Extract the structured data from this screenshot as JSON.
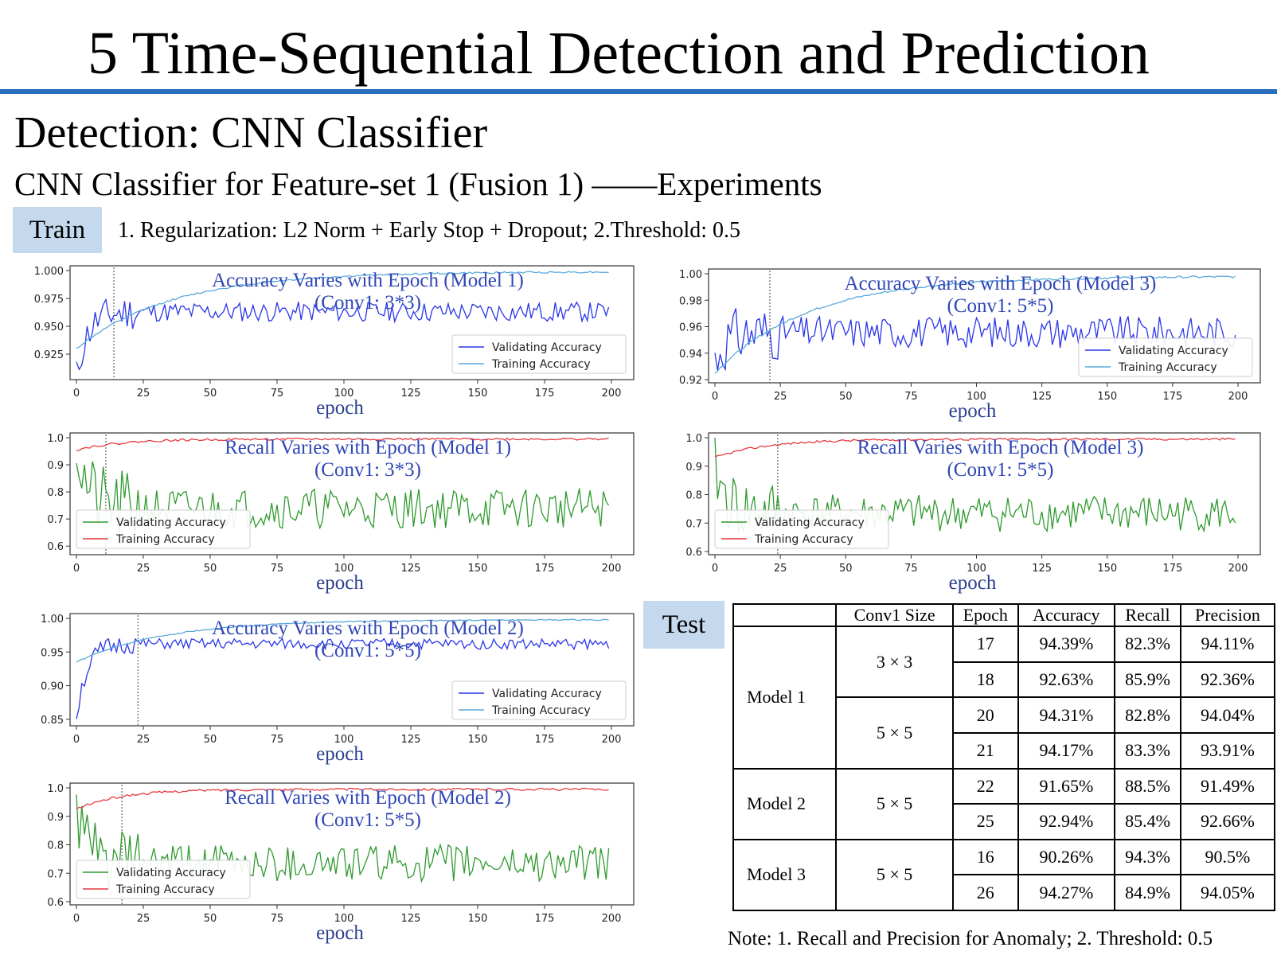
{
  "slide": {
    "title": "5  Time-Sequential Detection and Prediction",
    "section_title": "Detection: CNN Classifier",
    "subtitle": "CNN Classifier for Feature-set 1 (Fusion 1) ——Experiments",
    "train_tag": "Train",
    "train_description": "1. Regularization: L2 Norm + Early Stop + Dropout; 2.Threshold: 0.5",
    "test_tag": "Test",
    "note": "Note: 1. Recall and Precision for Anomaly; 2. Threshold: 0.5",
    "colors": {
      "rule": "#2a6fbf",
      "tag_bg": "#c5d9ee",
      "annotation": "#2f47b5",
      "validating_acc": "#2a36e8",
      "training_acc": "#5aa9dc",
      "validating_recall": "#2e9a2e",
      "training_recall": "#e8383f"
    }
  },
  "chart_data": [
    {
      "id": "acc-model1",
      "type": "line",
      "title": "Accuracy Varies with Epoch (Model 1)",
      "subtitle": "(Conv1: 3*3)",
      "xlabel": "epoch",
      "ylabel": "",
      "xlim": [
        0,
        200
      ],
      "ylim": [
        0.905,
        1.0
      ],
      "xticks": [
        0,
        25,
        50,
        75,
        100,
        125,
        150,
        175,
        200
      ],
      "yticks": [
        "1.000",
        "0.975",
        "0.950",
        "0.925"
      ],
      "early_stop_epoch": 14,
      "legend": "lower-right",
      "series": [
        {
          "name": "Validating Accuracy",
          "color": "#2a36e8",
          "start": 0.905,
          "level": 0.963,
          "noise": 0.009,
          "seed": 11
        },
        {
          "name": "Training Accuracy",
          "color": "#5aa9dc",
          "start": 0.93,
          "level": 0.999,
          "rate": 0.028,
          "noise": 0.0008,
          "seed": 12
        }
      ]
    },
    {
      "id": "acc-model3",
      "type": "line",
      "title": "Accuracy Varies with Epoch (Model 3)",
      "subtitle": "(Conv1: 5*5)",
      "xlabel": "epoch",
      "ylabel": "",
      "xlim": [
        0,
        200
      ],
      "ylim": [
        0.92,
        1.0
      ],
      "xticks": [
        0,
        25,
        50,
        75,
        100,
        125,
        150,
        175,
        200
      ],
      "yticks": [
        "1.00",
        "0.98",
        "0.96",
        "0.94",
        "0.92"
      ],
      "early_stop_epoch": 21,
      "legend": "lower-right",
      "series": [
        {
          "name": "Validating Accuracy",
          "color": "#2a36e8",
          "start": 0.935,
          "level": 0.956,
          "noise": 0.012,
          "seed": 31
        },
        {
          "name": "Training Accuracy",
          "color": "#5aa9dc",
          "start": 0.925,
          "level": 0.998,
          "rate": 0.028,
          "noise": 0.0008,
          "seed": 32
        }
      ]
    },
    {
      "id": "recall-model1",
      "type": "line",
      "title": "Recall Varies with Epoch (Model 1)",
      "subtitle": "(Conv1: 3*3)",
      "xlabel": "epoch",
      "ylabel": "",
      "xlim": [
        0,
        200
      ],
      "ylim": [
        0.58,
        1.0
      ],
      "xticks": [
        0,
        25,
        50,
        75,
        100,
        125,
        150,
        175,
        200
      ],
      "yticks": [
        "1.0",
        "0.9",
        "0.8",
        "0.7",
        "0.6"
      ],
      "early_stop_epoch": 11,
      "legend": "lower-left",
      "series": [
        {
          "name": "Validating Accuracy",
          "color": "#2e9a2e",
          "start": 0.97,
          "level": 0.74,
          "noise": 0.075,
          "seed": 21
        },
        {
          "name": "Training Accuracy",
          "color": "#e8383f",
          "start": 0.955,
          "level": 0.995,
          "rate": 0.06,
          "noise": 0.004,
          "seed": 22
        }
      ]
    },
    {
      "id": "recall-model3",
      "type": "line",
      "title": "Recall Varies with Epoch (Model 3)",
      "subtitle": "(Conv1: 5*5)",
      "xlabel": "epoch",
      "ylabel": "",
      "xlim": [
        0,
        200
      ],
      "ylim": [
        0.6,
        1.0
      ],
      "xticks": [
        0,
        25,
        50,
        75,
        100,
        125,
        150,
        175,
        200
      ],
      "yticks": [
        "1.0",
        "0.9",
        "0.8",
        "0.7",
        "0.6"
      ],
      "early_stop_epoch": 24,
      "legend": "lower-left",
      "series": [
        {
          "name": "Validating Accuracy",
          "color": "#2e9a2e",
          "start": 0.9,
          "level": 0.735,
          "noise": 0.065,
          "seed": 41
        },
        {
          "name": "Training Accuracy",
          "color": "#e8383f",
          "start": 0.93,
          "level": 0.995,
          "rate": 0.05,
          "noise": 0.004,
          "seed": 42
        }
      ]
    },
    {
      "id": "acc-model2",
      "type": "line",
      "title": "Accuracy Varies with Epoch (Model 2)",
      "subtitle": "(Conv1: 5*5)",
      "xlabel": "epoch",
      "ylabel": "",
      "xlim": [
        0,
        200
      ],
      "ylim": [
        0.845,
        1.0
      ],
      "xticks": [
        0,
        25,
        50,
        75,
        100,
        125,
        150,
        175,
        200
      ],
      "yticks": [
        "1.00",
        "0.95",
        "0.90",
        "0.85"
      ],
      "early_stop_epoch": 23,
      "legend": "lower-right",
      "series": [
        {
          "name": "Validating Accuracy",
          "color": "#2a36e8",
          "start": 0.855,
          "level": 0.962,
          "noise": 0.008,
          "seed": 51
        },
        {
          "name": "Training Accuracy",
          "color": "#5aa9dc",
          "start": 0.935,
          "level": 0.998,
          "rate": 0.03,
          "noise": 0.0008,
          "seed": 52
        }
      ]
    },
    {
      "id": "recall-model2",
      "type": "line",
      "title": "Recall Varies with Epoch (Model 2)",
      "subtitle": "(Conv1: 5*5)",
      "xlabel": "epoch",
      "ylabel": "",
      "xlim": [
        0,
        200
      ],
      "ylim": [
        0.6,
        1.0
      ],
      "xticks": [
        0,
        25,
        50,
        75,
        100,
        125,
        150,
        175,
        200
      ],
      "yticks": [
        "1.0",
        "0.9",
        "0.8",
        "0.7",
        "0.6"
      ],
      "early_stop_epoch": 17,
      "legend": "lower-left",
      "series": [
        {
          "name": "Validating Accuracy",
          "color": "#2e9a2e",
          "start": 0.93,
          "level": 0.735,
          "noise": 0.065,
          "seed": 61
        },
        {
          "name": "Training Accuracy",
          "color": "#e8383f",
          "start": 0.925,
          "level": 0.995,
          "rate": 0.06,
          "noise": 0.004,
          "seed": 62
        }
      ]
    }
  ],
  "table": {
    "headers": [
      "",
      "Conv1 Size",
      "Epoch",
      "Accuracy",
      "Recall",
      "Precision"
    ],
    "rows": [
      {
        "model": "Model 1",
        "model_rowspan": 4,
        "conv": "3 × 3",
        "conv_rowspan": 2,
        "epoch": "17",
        "accuracy": "94.39%",
        "recall": "82.3%",
        "precision": "94.11%"
      },
      {
        "epoch": "18",
        "accuracy": "92.63%",
        "recall": "85.9%",
        "precision": "92.36%"
      },
      {
        "conv": "5 × 5",
        "conv_rowspan": 2,
        "epoch": "20",
        "accuracy": "94.31%",
        "recall": "82.8%",
        "precision": "94.04%"
      },
      {
        "epoch": "21",
        "accuracy": "94.17%",
        "recall": "83.3%",
        "precision": "93.91%"
      },
      {
        "model": "Model 2",
        "model_rowspan": 2,
        "conv": "5 × 5",
        "conv_rowspan": 2,
        "epoch": "22",
        "accuracy": "91.65%",
        "recall": "88.5%",
        "precision": "91.49%"
      },
      {
        "epoch": "25",
        "accuracy": "92.94%",
        "recall": "85.4%",
        "precision": "92.66%"
      },
      {
        "model": "Model 3",
        "model_rowspan": 2,
        "conv": "5 × 5",
        "conv_rowspan": 2,
        "epoch": "16",
        "accuracy": "90.26%",
        "recall": "94.3%",
        "precision": "90.5%"
      },
      {
        "epoch": "26",
        "accuracy": "94.27%",
        "recall": "84.9%",
        "precision": "94.05%"
      }
    ]
  }
}
